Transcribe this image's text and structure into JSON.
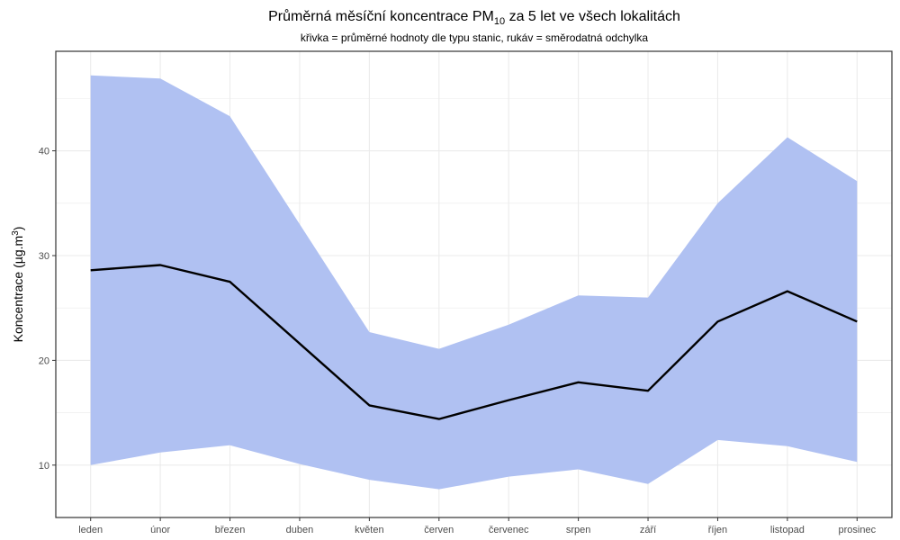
{
  "chart_data": {
    "type": "area",
    "title_main": "Průměrná měsíční koncentrace PM",
    "title_sub": "10",
    "title_rest": " za 5 let ve všech lokalitách",
    "subtitle": "křivka = průměrné hodnoty dle typu stanic, rukáv = směrodatná odchylka",
    "xlabel": "",
    "ylabel": "Koncentrace  (µg.m",
    "ylabel_sup": "3",
    "ylabel_end": ")",
    "categories": [
      "leden",
      "únor",
      "březen",
      "duben",
      "květen",
      "červen",
      "červenec",
      "srpen",
      "září",
      "říjen",
      "listopad",
      "prosinec"
    ],
    "yticks": [
      "10",
      "20",
      "30",
      "40"
    ],
    "ylim": [
      5,
      49.5
    ],
    "grid": true,
    "legend": "none",
    "series": [
      {
        "role": "mean",
        "values": [
          28.6,
          29.1,
          27.5,
          21.6,
          15.7,
          14.4,
          16.2,
          17.9,
          17.1,
          23.7,
          26.6,
          23.7
        ]
      },
      {
        "role": "sd_upper",
        "values": [
          47.2,
          46.9,
          43.3,
          33.0,
          22.7,
          21.1,
          23.4,
          26.2,
          26.0,
          35.0,
          41.3,
          37.1
        ]
      },
      {
        "role": "sd_lower",
        "values": [
          10.0,
          11.2,
          11.9,
          10.1,
          8.6,
          7.7,
          8.9,
          9.6,
          8.2,
          12.4,
          11.8,
          10.3
        ]
      }
    ],
    "colors": {
      "ribbon": "#b0c1f2",
      "line": "#000000",
      "grid": "#ebebeb",
      "panel_border": "#333333",
      "tick_text": "#4d4d4d"
    }
  }
}
